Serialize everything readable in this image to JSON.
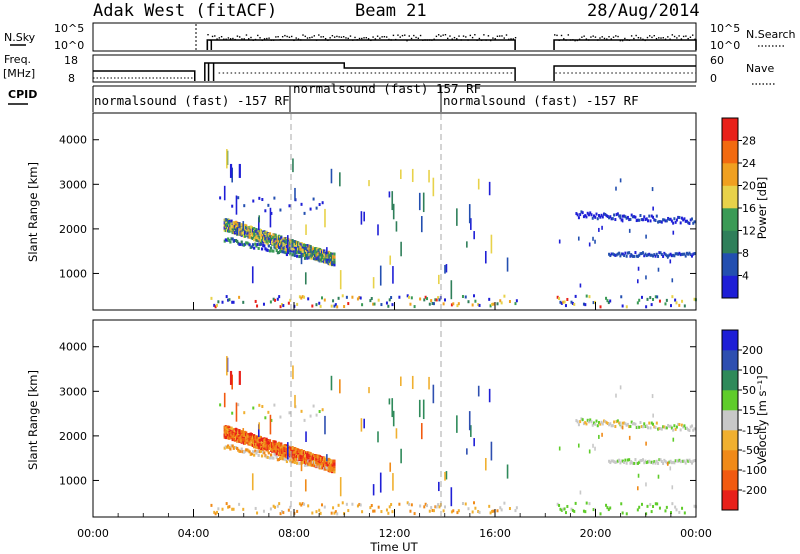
{
  "header": {
    "title": "Adak West (fitACF)",
    "beam": "Beam 21",
    "date": "28/Aug/2014"
  },
  "left_labels": {
    "nsky": "N.Sky",
    "freq": "Freq.",
    "freq_unit": "[MHz]",
    "cpid": "CPID"
  },
  "right_labels": {
    "nsearch": "N.Search",
    "nave": "Nave"
  },
  "cpid_segments": [
    {
      "label": "normalsound (fast) -157 RF",
      "start_hour": 0
    },
    {
      "label": "normalsound (fast) 157 RF",
      "start_hour": 8
    },
    {
      "label": "normalsound (fast) -157 RF",
      "start_hour": 14
    }
  ],
  "colors": {
    "power": [
      "#1f1fd6",
      "#234fb0",
      "#2f7f5a",
      "#3a9a55",
      "#e8d24a",
      "#f0a020",
      "#f26a10",
      "#e8201a"
    ],
    "velocity": [
      "#1f1fd6",
      "#2e4fb0",
      "#2f8a5a",
      "#5fcc2a",
      "#c8c8c8",
      "#f0b030",
      "#f08a18",
      "#f25a10",
      "#e8201a"
    ]
  },
  "chart_data": [
    {
      "type": "heatmap",
      "name": "power",
      "ylabel": "Slant Range [km]",
      "y_ticks": [
        "1000",
        "2000",
        "3000",
        "4000"
      ],
      "ylim": [
        180,
        4600
      ],
      "colorbar_label": "Power [dB]",
      "colorbar_ticks": [
        "4",
        "8",
        "12",
        "16",
        "20",
        "24",
        "28"
      ],
      "colorbar_range": [
        0,
        30
      ]
    },
    {
      "type": "heatmap",
      "name": "velocity",
      "xlabel": "Time UT",
      "x_ticks": [
        "00:00",
        "04:00",
        "08:00",
        "12:00",
        "16:00",
        "20:00",
        "00:00"
      ],
      "xlim": [
        0,
        24
      ],
      "ylabel": "Slant Range [km]",
      "y_ticks": [
        "1000",
        "2000",
        "3000",
        "4000"
      ],
      "ylim": [
        180,
        4600
      ],
      "colorbar_label": "Velocity [m s⁻¹]",
      "colorbar_ticks": [
        "200",
        "100",
        "50",
        "15",
        "-15",
        "-50",
        "-100",
        "-200"
      ],
      "colorbar_range": [
        -250,
        250
      ]
    },
    {
      "type": "line",
      "name": "noise",
      "left_ticks": [
        "10^5",
        "10^0"
      ],
      "right_ticks": [
        "10^5",
        "10^0"
      ]
    },
    {
      "type": "line",
      "name": "frequency",
      "left_ticks": [
        "18",
        "8"
      ],
      "right_ticks": [
        "60",
        "0"
      ]
    }
  ]
}
